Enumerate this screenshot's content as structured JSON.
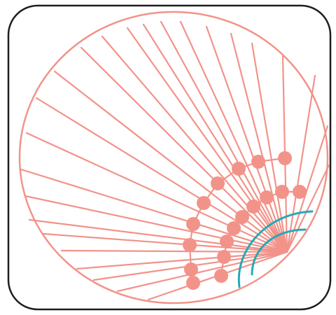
{
  "icon": {
    "name": "radial-network-icon",
    "colors": {
      "background": "#ffffff",
      "frame": "#1e1e1e",
      "network": "#f2938a",
      "arcs": "#26a9b4"
    }
  }
}
